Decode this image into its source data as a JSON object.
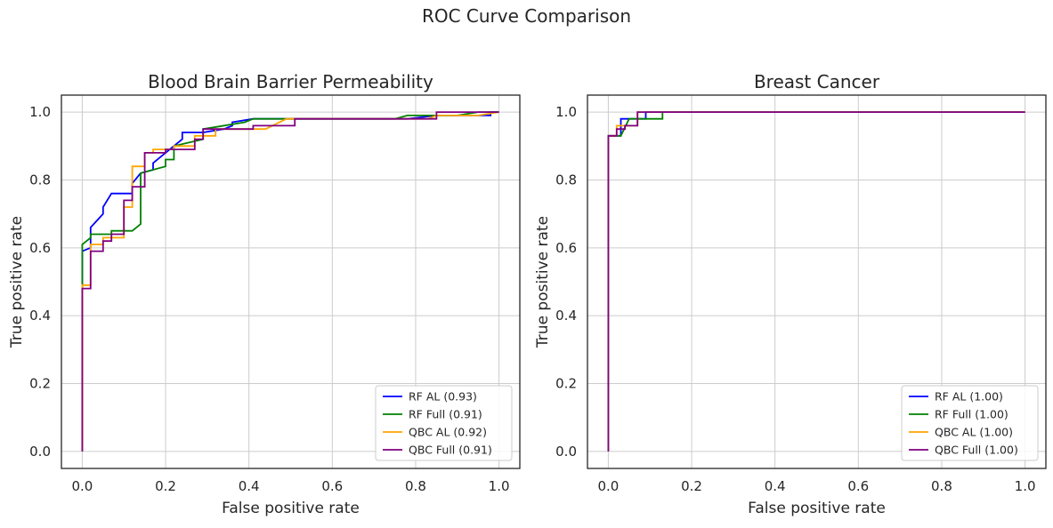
{
  "figure": {
    "suptitle": "ROC Curve Comparison"
  },
  "chart_data": [
    {
      "type": "line",
      "title": "Blood Brain Barrier Permeability",
      "xlabel": "False positive rate",
      "ylabel": "True positive rate",
      "xlim": [
        -0.05,
        1.05
      ],
      "ylim": [
        -0.05,
        1.05
      ],
      "xticks": [
        "0.0",
        "0.2",
        "0.4",
        "0.6",
        "0.8",
        "1.0"
      ],
      "yticks": [
        "0.0",
        "0.2",
        "0.4",
        "0.6",
        "0.8",
        "1.0"
      ],
      "grid": true,
      "legend_position": "lower-right",
      "series": [
        {
          "name": "RF AL (0.93)",
          "color": "#0000ff",
          "x": [
            0,
            0,
            0.02,
            0.02,
            0.05,
            0.05,
            0.07,
            0.12,
            0.12,
            0.14,
            0.17,
            0.17,
            0.2,
            0.24,
            0.24,
            0.29,
            0.34,
            0.36,
            0.36,
            0.41,
            0.51,
            0.78,
            0.85,
            0.93,
            0.98,
            0.98,
            1.0
          ],
          "y": [
            0,
            0.59,
            0.6,
            0.66,
            0.7,
            0.72,
            0.76,
            0.76,
            0.79,
            0.82,
            0.83,
            0.85,
            0.88,
            0.92,
            0.94,
            0.94,
            0.95,
            0.96,
            0.97,
            0.98,
            0.98,
            0.98,
            0.99,
            0.99,
            0.99,
            1.0,
            1.0
          ]
        },
        {
          "name": "RF Full (0.91)",
          "color": "#008000",
          "x": [
            0,
            0,
            0.02,
            0.02,
            0.07,
            0.07,
            0.12,
            0.14,
            0.14,
            0.2,
            0.2,
            0.22,
            0.22,
            0.29,
            0.29,
            0.39,
            0.41,
            0.44,
            0.75,
            0.78,
            0.85,
            0.9,
            0.95,
            1.0
          ],
          "y": [
            0,
            0.61,
            0.63,
            0.64,
            0.64,
            0.65,
            0.65,
            0.67,
            0.82,
            0.84,
            0.86,
            0.86,
            0.9,
            0.92,
            0.95,
            0.97,
            0.98,
            0.98,
            0.98,
            0.99,
            0.99,
            0.99,
            1.0,
            1.0
          ]
        },
        {
          "name": "QBC AL (0.92)",
          "color": "#ffa500",
          "x": [
            0,
            0,
            0.02,
            0.02,
            0.05,
            0.05,
            0.1,
            0.1,
            0.12,
            0.12,
            0.15,
            0.15,
            0.17,
            0.17,
            0.22,
            0.22,
            0.27,
            0.27,
            0.32,
            0.32,
            0.44,
            0.49,
            0.83,
            0.85,
            0.95,
            1.0
          ],
          "y": [
            0,
            0.49,
            0.49,
            0.61,
            0.61,
            0.63,
            0.63,
            0.72,
            0.72,
            0.84,
            0.84,
            0.88,
            0.88,
            0.89,
            0.89,
            0.9,
            0.9,
            0.93,
            0.93,
            0.95,
            0.95,
            0.98,
            0.98,
            0.99,
            0.99,
            1.0
          ]
        },
        {
          "name": "QBC Full (0.91)",
          "color": "#800080",
          "x": [
            0,
            0,
            0.02,
            0.02,
            0.05,
            0.05,
            0.07,
            0.07,
            0.1,
            0.1,
            0.12,
            0.12,
            0.15,
            0.15,
            0.2,
            0.2,
            0.27,
            0.27,
            0.29,
            0.29,
            0.41,
            0.41,
            0.51,
            0.51,
            0.85,
            0.85,
            1.0
          ],
          "y": [
            0,
            0.48,
            0.48,
            0.59,
            0.59,
            0.62,
            0.62,
            0.64,
            0.64,
            0.74,
            0.74,
            0.78,
            0.78,
            0.88,
            0.88,
            0.89,
            0.89,
            0.92,
            0.92,
            0.95,
            0.95,
            0.96,
            0.96,
            0.98,
            0.98,
            1.0,
            1.0
          ]
        }
      ]
    },
    {
      "type": "line",
      "title": "Breast Cancer",
      "xlabel": "False positive rate",
      "ylabel": "True positive rate",
      "xlim": [
        -0.05,
        1.05
      ],
      "ylim": [
        -0.05,
        1.05
      ],
      "xticks": [
        "0.0",
        "0.2",
        "0.4",
        "0.6",
        "0.8",
        "1.0"
      ],
      "yticks": [
        "0.0",
        "0.2",
        "0.4",
        "0.6",
        "0.8",
        "1.0"
      ],
      "grid": true,
      "legend_position": "lower-right",
      "series": [
        {
          "name": "RF AL (1.00)",
          "color": "#0000ff",
          "x": [
            0,
            0,
            0.03,
            0.03,
            0.06,
            0.06,
            0.09,
            0.09,
            1.0
          ],
          "y": [
            0,
            0.93,
            0.93,
            0.98,
            0.98,
            0.98,
            0.98,
            1.0,
            1.0
          ]
        },
        {
          "name": "RF Full (1.00)",
          "color": "#008000",
          "x": [
            0,
            0,
            0.03,
            0.05,
            0.13,
            0.13,
            1.0
          ],
          "y": [
            0,
            0.93,
            0.93,
            0.98,
            0.98,
            1.0,
            1.0
          ]
        },
        {
          "name": "QBC AL (1.00)",
          "color": "#ffa500",
          "x": [
            0,
            0,
            0.02,
            0.02,
            0.07,
            0.07,
            1.0
          ],
          "y": [
            0,
            0.93,
            0.93,
            0.96,
            0.96,
            1.0,
            1.0
          ]
        },
        {
          "name": "QBC Full (1.00)",
          "color": "#800080",
          "x": [
            0,
            0,
            0.02,
            0.02,
            0.04,
            0.04,
            0.07,
            0.07,
            1.0
          ],
          "y": [
            0,
            0.93,
            0.93,
            0.95,
            0.95,
            0.96,
            0.96,
            1.0,
            1.0
          ]
        }
      ]
    }
  ]
}
